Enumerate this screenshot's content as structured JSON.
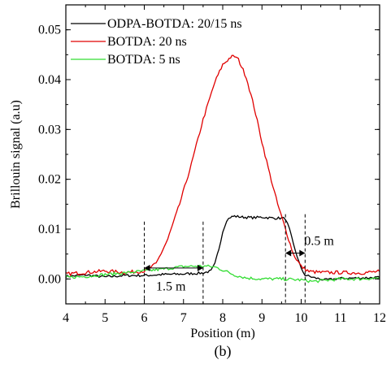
{
  "chart_data": {
    "type": "line",
    "title": "",
    "xlabel": "Position (m)",
    "ylabel": "Brillouin signal (a.u)",
    "panel_label": "(b)",
    "xlim": [
      4,
      12
    ],
    "ylim": [
      -0.005,
      0.055
    ],
    "x_ticks": [
      4,
      5,
      6,
      7,
      8,
      9,
      10,
      11,
      12
    ],
    "y_ticks": [
      0.0,
      0.01,
      0.02,
      0.03,
      0.04,
      0.05
    ],
    "x_tick_labels": [
      "4",
      "5",
      "6",
      "7",
      "8",
      "9",
      "10",
      "11",
      "12"
    ],
    "y_tick_labels": [
      "0.00",
      "0.01",
      "0.02",
      "0.03",
      "0.04",
      "0.05"
    ],
    "grid": false,
    "legend_position": "top-left",
    "series": [
      {
        "name": "ODPA-BOTDA: 20/15 ns",
        "color": "#000000",
        "x": [
          4.0,
          4.5,
          5.0,
          5.5,
          6.0,
          6.5,
          7.0,
          7.5,
          7.7,
          7.8,
          7.9,
          8.0,
          8.1,
          8.2,
          8.3,
          8.5,
          8.8,
          9.0,
          9.3,
          9.5,
          9.6,
          9.7,
          9.8,
          9.9,
          10.0,
          10.1,
          10.3,
          10.6,
          11.0,
          11.5,
          12.0
        ],
        "y": [
          0.0005,
          0.0008,
          0.0004,
          0.0007,
          0.0007,
          0.0009,
          0.001,
          0.0012,
          0.0016,
          0.003,
          0.006,
          0.0095,
          0.0118,
          0.0124,
          0.0126,
          0.0124,
          0.0123,
          0.0124,
          0.0122,
          0.0122,
          0.0121,
          0.01,
          0.007,
          0.0045,
          0.002,
          0.0008,
          0.0003,
          -0.0002,
          0.0001,
          0.0002,
          0.0003
        ]
      },
      {
        "name": "BOTDA: 20 ns",
        "color": "#e00000",
        "x": [
          4.0,
          4.5,
          5.0,
          5.5,
          6.0,
          6.3,
          6.6,
          6.9,
          7.2,
          7.5,
          7.8,
          8.0,
          8.2,
          8.3,
          8.4,
          8.6,
          8.8,
          9.0,
          9.2,
          9.4,
          9.6,
          9.8,
          10.0,
          10.2,
          10.5,
          11.0,
          11.5,
          12.0
        ],
        "y": [
          0.001,
          0.0013,
          0.0016,
          0.0013,
          0.0016,
          0.003,
          0.008,
          0.015,
          0.023,
          0.032,
          0.0395,
          0.043,
          0.0445,
          0.0447,
          0.044,
          0.0405,
          0.0345,
          0.0275,
          0.021,
          0.015,
          0.01,
          0.005,
          0.0025,
          0.0015,
          0.0013,
          0.0013,
          0.0012,
          0.0015
        ]
      },
      {
        "name": "BOTDA: 5 ns",
        "color": "#33dd33",
        "x": [
          4.0,
          4.5,
          5.0,
          5.5,
          6.0,
          6.5,
          7.0,
          7.5,
          7.8,
          8.0,
          8.3,
          8.6,
          9.0,
          9.5,
          10.0,
          10.3,
          10.6,
          11.0,
          11.5,
          12.0
        ],
        "y": [
          0.0003,
          0.0005,
          0.0009,
          0.0012,
          0.0016,
          0.002,
          0.0025,
          0.0026,
          0.0024,
          0.0018,
          0.0008,
          0.0002,
          0.0,
          0.0,
          -0.0002,
          -0.0005,
          -0.0003,
          0.0,
          0.0,
          0.0002
        ]
      }
    ],
    "annotations": [
      {
        "text": "1.5 m",
        "x_start": 6.0,
        "x_end": 7.5,
        "y": 0.0022
      },
      {
        "text": "0.5 m",
        "x_start": 9.6,
        "x_end": 10.1,
        "y": 0.0052
      }
    ],
    "vlines": [
      6.0,
      7.5,
      9.6,
      10.1
    ]
  }
}
